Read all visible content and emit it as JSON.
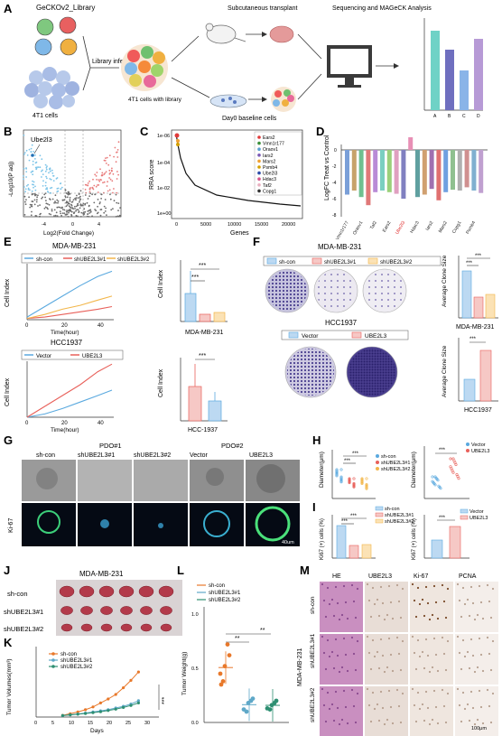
{
  "panels": {
    "A": {
      "letter": "A",
      "library": "GeCKOv2_Library",
      "cells": "4T1 cells",
      "infection": "Library infection",
      "with_library": "4T1 cells with library",
      "transplant": "Subcutaneous transplant",
      "baseline": "Day0 baseline cells",
      "sequencing": "Sequencing and MAGeCK Analysis",
      "bar_cats": [
        "A",
        "B",
        "C",
        "D"
      ],
      "colors": [
        "#6fd2c6",
        "#6f6fbf",
        "#8ab4e8",
        "#b79ad6"
      ]
    },
    "B": {
      "letter": "B",
      "gene": "Ube2l3",
      "ylabel": "-Log10(P adj)",
      "xlabel": "Log2(Fold Change)",
      "xticks": [
        "-4",
        "0",
        "4"
      ]
    },
    "C": {
      "letter": "C",
      "ylabel": "RRA score",
      "xlabel": "Genes",
      "yticks": [
        "1e-06",
        "1e-04",
        "1e-02",
        "1e+00"
      ],
      "xticks": [
        "0",
        "5000",
        "10000",
        "15000",
        "20000"
      ],
      "legend": [
        "Ears2",
        "Vmn1r177",
        "Oraov1",
        "Iars2",
        "Mars2",
        "Psmb4",
        "Ube2l3",
        "Hdac3",
        "Taf2",
        "Copg1"
      ],
      "legend_colors": [
        "#e03a3a",
        "#3a8f3a",
        "#5aa0d0",
        "#7b59b5",
        "#f0a030",
        "#d4a000",
        "#2b4ba8",
        "#d6568c",
        "#e8b0c0",
        "#333333"
      ]
    },
    "D": {
      "letter": "D",
      "ylabel": "LogFC Treat vs Control",
      "yticks": [
        "0",
        "-2",
        "-4",
        "-6",
        "-8"
      ],
      "labels": [
        "Vmn1r177",
        "Oraov1",
        "Taf2",
        "Ears2",
        "Ube2l3",
        "Hdac3",
        "Iars2",
        "Mars2",
        "Copg1",
        "Psmb4"
      ],
      "highlight": "Ube2l3"
    },
    "E": {
      "letter": "E",
      "top_title": "MDA-MB-231",
      "top_legend": [
        "sh-con",
        "shUBE2L3#1",
        "shUBE2L3#2"
      ],
      "bot_title": "HCC1937",
      "bot_legend": [
        "Vector",
        "UBE2L3"
      ],
      "xlabel": "Time(hour)",
      "ylabel": "Cell Index",
      "xticks": [
        "0",
        "20",
        "40"
      ],
      "top_yticks": [
        "0",
        "1",
        "2",
        "3",
        "4"
      ],
      "bot_yticks": [
        "0",
        "1",
        "2",
        "3",
        "4",
        "5"
      ],
      "bar_top_label": "MDA-MB-231",
      "bar_bot_label": "HCC-1937",
      "bar_top_yticks": [
        "0",
        "1",
        "2",
        "3",
        "4"
      ],
      "bar_bot_yticks": [
        "0",
        "1",
        "2",
        "3",
        "4",
        "5"
      ],
      "sig": "***"
    },
    "F": {
      "letter": "F",
      "top_title": "MDA-MB-231",
      "top_legend": [
        "sh-con",
        "shUBE2L3#1",
        "shUBE2L3#2"
      ],
      "bot_title": "HCC1937",
      "bot_legend": [
        "Vector",
        "UBE2L3"
      ],
      "ylabel": "Average Clone Size",
      "top_label": "MDA-MB-231",
      "bot_label": "HCC1937",
      "top_yticks": [
        "0",
        "10",
        "20",
        "30",
        "40",
        "50"
      ],
      "bot_yticks": [
        "0",
        "20",
        "40",
        "60",
        "80",
        "100"
      ],
      "sig": "***"
    },
    "G": {
      "letter": "G",
      "pdo1": "PDO#1",
      "pdo2": "PDO#2",
      "cols": [
        "sh-con",
        "shUBE2L3#1",
        "shUBE2L3#2",
        "Vector",
        "UBE2L3"
      ],
      "row_label": "Ki-67",
      "scale": "40um"
    },
    "H": {
      "letter": "H",
      "ylabel": "Diameter(μm)",
      "left_legend": [
        "sh-con",
        "shUBE2L3#1",
        "shUBE2L3#2"
      ],
      "right_legend": [
        "Vector",
        "UBE2L3"
      ],
      "left_yticks": [
        "0",
        "100",
        "200",
        "300"
      ],
      "right_yticks": [
        "0",
        "100",
        "200",
        "300",
        "400",
        "500"
      ],
      "sig": "***"
    },
    "I": {
      "letter": "I",
      "ylabel": "Ki67 (+) cells (%)",
      "left_legend": [
        "sh-con",
        "shUBE2L3#1",
        "shUBE2L3#2"
      ],
      "right_legend": [
        "Vector",
        "UBE2L3"
      ],
      "left_yticks": [
        "0",
        "20",
        "40",
        "60",
        "80"
      ],
      "right_yticks": [
        "0",
        "20",
        "40",
        "60",
        "80",
        "100"
      ],
      "sig": "***"
    },
    "J": {
      "letter": "J",
      "title": "MDA-MB-231",
      "rows": [
        "sh-con",
        "shUBE2L3#1",
        "shUBE2L3#2"
      ]
    },
    "K": {
      "letter": "K",
      "legend": [
        "sh-con",
        "shUBE2L3#1",
        "shUBE2L3#2"
      ],
      "ylabel": "Tumor Volumes(mm³)",
      "xlabel": "Days",
      "xticks": [
        "0",
        "5",
        "10",
        "15",
        "20",
        "25",
        "30"
      ],
      "yticks": [
        "0",
        "250",
        "500",
        "750",
        "1000",
        "1250"
      ],
      "sig": "***"
    },
    "L": {
      "letter": "L",
      "legend": [
        "sh-con",
        "shUBE2L3#1",
        "shUBE2L3#2"
      ],
      "ylabel": "Tumor Weight(g)",
      "yticks": [
        "0.0",
        "0.5",
        "1.0"
      ],
      "sig": "**"
    },
    "M": {
      "letter": "M",
      "cols": [
        "HE",
        "UBE2L3",
        "Ki-67",
        "PCNA"
      ],
      "cell_line": "MDA-MB-231",
      "rows": [
        "sh-con",
        "shUBE2L3#1",
        "shUBE2L3#2"
      ],
      "scale": "100μm"
    }
  },
  "colors": {
    "red": "#e8605a",
    "blue": "#5aa9df",
    "yellow": "#f2b64a",
    "orange": "#e8782a",
    "steelblue": "#5fa8c8",
    "green": "#2e8f72",
    "purple": "#3c2a7a"
  },
  "chart_data": [
    {
      "type": "line",
      "title": "MDA-MB-231",
      "xlabel": "Time(hour)",
      "ylabel": "Cell Index",
      "x": [
        0,
        10,
        20,
        30,
        40,
        48
      ],
      "series": [
        {
          "name": "sh-con",
          "values": [
            0.2,
            1.0,
            1.8,
            2.6,
            3.3,
            3.7
          ]
        },
        {
          "name": "shUBE2L3#1",
          "values": [
            0.1,
            0.2,
            0.4,
            0.6,
            0.8,
            1.0
          ]
        },
        {
          "name": "shUBE2L3#2",
          "values": [
            0.1,
            0.4,
            0.8,
            1.1,
            1.5,
            1.8
          ]
        }
      ],
      "ylim": [
        0,
        4
      ]
    },
    {
      "type": "line",
      "title": "HCC1937",
      "xlabel": "Time(hour)",
      "ylabel": "Cell Index",
      "x": [
        0,
        10,
        20,
        30,
        40,
        48
      ],
      "series": [
        {
          "name": "Vector",
          "values": [
            0.0,
            0.3,
            0.8,
            1.4,
            2.0,
            2.5
          ]
        },
        {
          "name": "UBE2L3",
          "values": [
            0.0,
            1.0,
            2.0,
            3.0,
            4.2,
            4.9
          ]
        }
      ],
      "ylim": [
        0,
        5
      ]
    }
  ]
}
